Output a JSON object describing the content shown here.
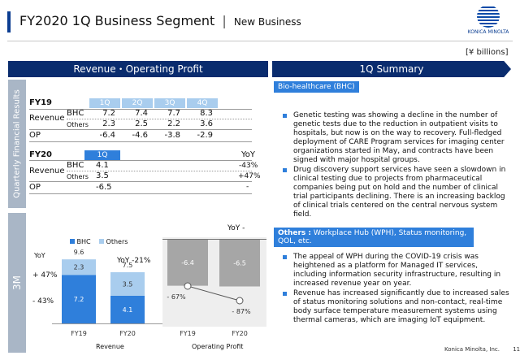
{
  "header": {
    "title": "FY2020 1Q Business Segment",
    "separator": "|",
    "subtitle": "New Business",
    "logo_text": "KONICA MINOLTA"
  },
  "unit_label": "[¥ billions]",
  "left_panel": {
    "header": "Revenue・Operating Profit",
    "side_label_quarterly": "Quarterly Financial Results",
    "side_label_3m": "3M",
    "fy19": {
      "label": "FY19",
      "quarters": [
        "1Q",
        "2Q",
        "3Q",
        "4Q"
      ],
      "revenue_label": "Revenue",
      "bhc_label": "BHC",
      "others_label": "Others",
      "bhc": [
        "7.2",
        "7.4",
        "7.7",
        "8.3"
      ],
      "others": [
        "2.3",
        "2.5",
        "2.2",
        "3.6"
      ],
      "op_label": "OP",
      "op": [
        "-6.4",
        "-4.6",
        "-3.8",
        "-2.9"
      ]
    },
    "fy20": {
      "label": "FY20",
      "quarters": [
        "1Q"
      ],
      "yoy_label": "YoY",
      "revenue_label": "Revenue",
      "bhc_label": "BHC",
      "others_label": "Others",
      "bhc": [
        "4.1"
      ],
      "others": [
        "3.5"
      ],
      "op_label": "OP",
      "op": [
        "-6.5"
      ],
      "yoy_bhc": "-43%",
      "yoy_others": "+47%",
      "yoy_op": "-"
    }
  },
  "chart": {
    "legend_bhc": "BHC",
    "legend_others": "Others",
    "yoy_label_left": "YoY",
    "yoy_others": "+ 47%",
    "yoy_bhc": "- 43%",
    "yoy_total": "YoY  -21%",
    "revenue_totals": [
      "9.6",
      "7.5"
    ],
    "op_yoy_header": "YoY  -",
    "op_labels": [
      "-6.4",
      "-6.5"
    ],
    "pct_labels": [
      "- 67%",
      "- 87%"
    ],
    "x_rev": [
      "FY19",
      "FY20"
    ],
    "x_op": [
      "FY19",
      "FY20"
    ],
    "group_revenue": "Revenue",
    "group_op": "Operating Profit"
  },
  "chart_data": [
    {
      "type": "bar",
      "stacked": true,
      "categories": [
        "FY19",
        "FY20"
      ],
      "series": [
        {
          "name": "BHC",
          "values": [
            7.2,
            4.1
          ]
        },
        {
          "name": "Others",
          "values": [
            2.3,
            3.5
          ]
        }
      ],
      "totals": [
        9.6,
        7.5
      ],
      "xlabel": "Revenue"
    },
    {
      "type": "bar",
      "categories": [
        "FY19",
        "FY20"
      ],
      "values": [
        -6.4,
        -6.5
      ],
      "line_values_percent": [
        -67,
        -87
      ],
      "xlabel": "Operating Profit"
    }
  ],
  "right_panel": {
    "header": "1Q Summary",
    "bhc_title": "Bio-healthcare (BHC)",
    "bhc_bullets": [
      "Genetic testing was showing a decline in the number of genetic tests due to the reduction in outpatient visits to hospitals, but now is on the way to recovery. Full-fledged deployment of CARE Program services for imaging center organizations started in May, and contracts have been signed with major hospital groups.",
      "Drug discovery support services have seen a slowdown in clinical testing due to projects from pharmaceutical companies being put on hold and the number of clinical trial participants declining. There is an increasing backlog of clinical trials centered on the central nervous system field."
    ],
    "others_title_bold": "Others :",
    "others_title_rest": " Workplace Hub (WPH), Status monitoring, QOL, etc.",
    "others_bullets": [
      "The appeal of WPH during the COVID-19 crisis was heightened as a platform for Managed IT services, including information security infrastructure, resulting in increased revenue year on year.",
      "Revenue has increased significantly due to increased sales of status monitoring solutions and non-contact, real-time body surface temperature measurement systems using thermal cameras, which are imaging IoT equipment."
    ]
  },
  "footer": {
    "company": "Konica Minolta, Inc.",
    "page": "11"
  },
  "colors": {
    "navy": "#0a2c6e",
    "bhc_blue": "#2f7fdb",
    "others_blue": "#a9cdee",
    "op_gray": "#a6a6a6"
  }
}
